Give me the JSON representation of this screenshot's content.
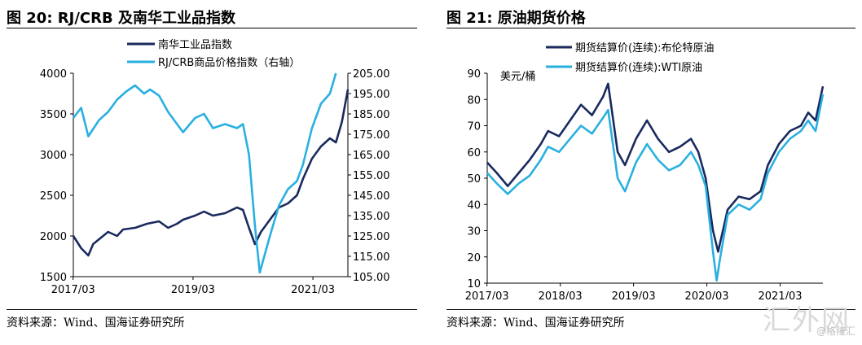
{
  "left": {
    "title": "图 20:    RJ/CRB 及南华工业品指数",
    "source": "资料来源：Wind、国海证券研究所",
    "chart_data": {
      "type": "line",
      "x_ticks": [
        "2017/03",
        "2019/03",
        "2021/03"
      ],
      "x_range": [
        2017.17,
        2021.75
      ],
      "y_left": {
        "range": [
          1500,
          4000
        ],
        "ticks": [
          "1500",
          "2000",
          "2500",
          "3000",
          "3500",
          "4000"
        ]
      },
      "y_right": {
        "range": [
          105,
          205
        ],
        "ticks": [
          "105.00",
          "115.00",
          "125.00",
          "135.00",
          "145.00",
          "155.00",
          "165.00",
          "175.00",
          "185.00",
          "195.00",
          "205.00"
        ]
      },
      "grid": false,
      "legend": "top",
      "series": [
        {
          "name": "南华工业品指数",
          "axis": "left",
          "color": "#1a2a5e",
          "x": [
            2017.17,
            2017.3,
            2017.42,
            2017.5,
            2017.6,
            2017.75,
            2017.9,
            2018.0,
            2018.2,
            2018.4,
            2018.6,
            2018.75,
            2018.9,
            2019.0,
            2019.2,
            2019.35,
            2019.5,
            2019.7,
            2019.9,
            2020.0,
            2020.1,
            2020.2,
            2020.3,
            2020.45,
            2020.6,
            2020.75,
            2020.9,
            2021.0,
            2021.15,
            2021.3,
            2021.45,
            2021.55,
            2021.65,
            2021.75
          ],
          "y": [
            2000,
            1850,
            1760,
            1900,
            1960,
            2050,
            2000,
            2080,
            2100,
            2150,
            2180,
            2100,
            2150,
            2200,
            2250,
            2300,
            2250,
            2280,
            2350,
            2320,
            2100,
            1900,
            2050,
            2200,
            2350,
            2400,
            2500,
            2700,
            2950,
            3100,
            3200,
            3150,
            3400,
            3800
          ]
        },
        {
          "name": "RJ/CRB商品价格指数（右轴）",
          "axis": "right",
          "color": "#2ab0e0",
          "x": [
            2017.17,
            2017.3,
            2017.42,
            2017.6,
            2017.75,
            2017.9,
            2018.05,
            2018.2,
            2018.35,
            2018.45,
            2018.6,
            2018.75,
            2018.9,
            2019.0,
            2019.2,
            2019.35,
            2019.5,
            2019.7,
            2019.9,
            2020.0,
            2020.1,
            2020.2,
            2020.28,
            2020.45,
            2020.6,
            2020.75,
            2020.9,
            2021.0,
            2021.15,
            2021.3,
            2021.45,
            2021.55
          ],
          "y": [
            183,
            188,
            174,
            182,
            186,
            192,
            196,
            199,
            195,
            197,
            194,
            186,
            180,
            176,
            183,
            185,
            178,
            180,
            178,
            180,
            165,
            130,
            107,
            125,
            140,
            148,
            152,
            160,
            178,
            190,
            195,
            205
          ]
        }
      ]
    }
  },
  "right": {
    "title": "图 21:  原油期货价格",
    "source": "资料来源：Wind、国海证券研究所",
    "chart_data": {
      "type": "line",
      "x_ticks": [
        "2017/03",
        "2018/03",
        "2019/03",
        "2020/03",
        "2021/03"
      ],
      "x_range": [
        2017.17,
        2021.75
      ],
      "y_axis": {
        "range": [
          10,
          90
        ],
        "ticks": [
          "10",
          "20",
          "30",
          "40",
          "50",
          "60",
          "70",
          "80",
          "90"
        ],
        "unit": "美元/桶"
      },
      "grid": false,
      "legend": "top",
      "series": [
        {
          "name": "期货结算价(连续):布伦特原油",
          "color": "#1a2a5e",
          "x": [
            2017.17,
            2017.3,
            2017.45,
            2017.6,
            2017.75,
            2017.9,
            2018.0,
            2018.15,
            2018.3,
            2018.45,
            2018.6,
            2018.75,
            2018.82,
            2018.95,
            2019.05,
            2019.2,
            2019.35,
            2019.5,
            2019.65,
            2019.8,
            2019.95,
            2020.05,
            2020.15,
            2020.25,
            2020.32,
            2020.45,
            2020.6,
            2020.75,
            2020.9,
            2021.0,
            2021.15,
            2021.3,
            2021.45,
            2021.55,
            2021.65,
            2021.75
          ],
          "y": [
            56,
            52,
            47,
            52,
            57,
            63,
            68,
            66,
            72,
            78,
            74,
            81,
            86,
            60,
            55,
            65,
            72,
            65,
            60,
            62,
            65,
            60,
            50,
            30,
            22,
            38,
            43,
            42,
            45,
            55,
            63,
            68,
            70,
            75,
            72,
            85
          ]
        },
        {
          "name": "期货结算价(连续):WTI原油",
          "color": "#2ab0e0",
          "x": [
            2017.17,
            2017.3,
            2017.45,
            2017.6,
            2017.75,
            2017.9,
            2018.0,
            2018.15,
            2018.3,
            2018.45,
            2018.6,
            2018.75,
            2018.82,
            2018.95,
            2019.05,
            2019.2,
            2019.35,
            2019.5,
            2019.65,
            2019.8,
            2019.95,
            2020.05,
            2020.15,
            2020.25,
            2020.3,
            2020.35,
            2020.45,
            2020.6,
            2020.75,
            2020.9,
            2021.0,
            2021.15,
            2021.3,
            2021.45,
            2021.55,
            2021.65,
            2021.75
          ],
          "y": [
            52,
            48,
            44,
            48,
            51,
            57,
            62,
            60,
            65,
            70,
            67,
            73,
            76,
            50,
            45,
            56,
            63,
            57,
            53,
            55,
            60,
            55,
            47,
            22,
            11,
            20,
            36,
            40,
            38,
            42,
            52,
            60,
            65,
            68,
            72,
            68,
            82
          ]
        }
      ]
    }
  },
  "watermark": {
    "main": "汇外网",
    "sub": "@格隆汇"
  }
}
